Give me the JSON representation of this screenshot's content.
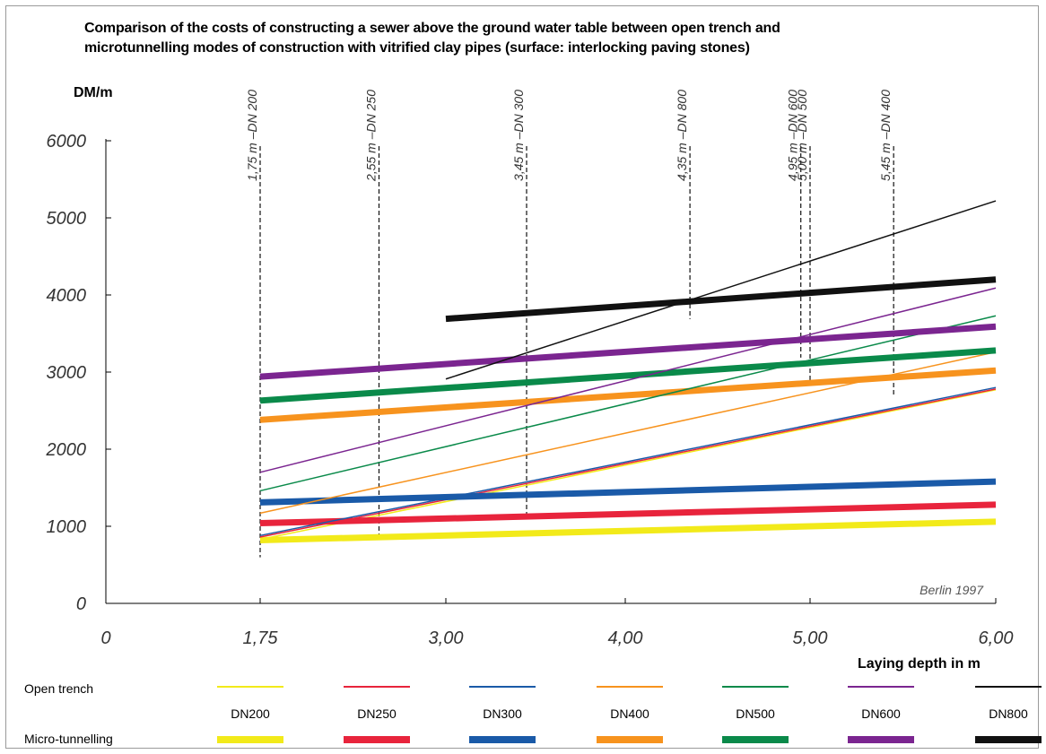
{
  "chart_data": {
    "type": "line",
    "title_lines": [
      "Comparison of the costs of constructing a sewer above  the ground water table  between open trench and",
      "microtunnelling modes of construction with vitrified clay pipes (surface: interlocking paving stones)"
    ],
    "ylabel": "DM/m",
    "xlabel": "Laying depth in m",
    "x_ticks": [
      {
        "value": 0,
        "label": "0"
      },
      {
        "value": 1.75,
        "label": "1,75"
      },
      {
        "value": 3.0,
        "label": "3,00"
      },
      {
        "value": 4.0,
        "label": "4,00"
      },
      {
        "value": 5.0,
        "label": "5,00"
      },
      {
        "value": 6.0,
        "label": "6,00"
      }
    ],
    "y_ticks": [
      {
        "value": 0,
        "label": "0"
      },
      {
        "value": 1000,
        "label": "1000"
      },
      {
        "value": 2000,
        "label": "2000"
      },
      {
        "value": 3000,
        "label": "3000"
      },
      {
        "value": 4000,
        "label": "4000"
      },
      {
        "value": 5000,
        "label": "5000"
      },
      {
        "value": 6000,
        "label": "6000"
      }
    ],
    "ylim": [
      0,
      6000
    ],
    "annotation": "Berlin 1997",
    "breakeven_markers": [
      {
        "x": 1.75,
        "label": "1,75 m –DN 200"
      },
      {
        "x": 2.55,
        "label": "2,55 m –DN 250"
      },
      {
        "x": 3.45,
        "label": "3,45 m –DN 300"
      },
      {
        "x": 4.35,
        "label": "4,35 m –DN 800"
      },
      {
        "x": 4.95,
        "label": "4,95 m –DN 600"
      },
      {
        "x": 5.0,
        "label": "5,00 m –DN 500"
      },
      {
        "x": 5.45,
        "label": "5,45 m –DN 400"
      }
    ],
    "series": [
      {
        "name": "DN200",
        "color": "#f2ea1a",
        "open_trench": [
          [
            1.75,
            830
          ],
          [
            6.0,
            2770
          ]
        ],
        "micro_tunnelling": [
          [
            1.75,
            820
          ],
          [
            6.0,
            1060
          ]
        ]
      },
      {
        "name": "DN250",
        "color": "#e8243c",
        "open_trench": [
          [
            1.75,
            860
          ],
          [
            6.0,
            2780
          ]
        ],
        "micro_tunnelling": [
          [
            1.75,
            1040
          ],
          [
            6.0,
            1280
          ]
        ]
      },
      {
        "name": "DN300",
        "color": "#1a5aa8",
        "open_trench": [
          [
            1.75,
            880
          ],
          [
            6.0,
            2800
          ]
        ],
        "micro_tunnelling": [
          [
            1.75,
            1310
          ],
          [
            6.0,
            1580
          ]
        ]
      },
      {
        "name": "DN400",
        "color": "#f7931e",
        "open_trench": [
          [
            1.75,
            1170
          ],
          [
            6.0,
            3260
          ]
        ],
        "micro_tunnelling": [
          [
            1.75,
            2380
          ],
          [
            6.0,
            3020
          ]
        ]
      },
      {
        "name": "DN500",
        "color": "#0a8a4a",
        "open_trench": [
          [
            1.75,
            1460
          ],
          [
            6.0,
            3730
          ]
        ],
        "micro_tunnelling": [
          [
            1.75,
            2630
          ],
          [
            6.0,
            3280
          ]
        ]
      },
      {
        "name": "DN600",
        "color": "#7b2590",
        "open_trench": [
          [
            1.75,
            1700
          ],
          [
            6.0,
            4090
          ]
        ],
        "micro_tunnelling": [
          [
            1.75,
            2940
          ],
          [
            6.0,
            3590
          ]
        ]
      },
      {
        "name": "DN800",
        "color": "#111111",
        "open_trench": [
          [
            3.0,
            2910
          ],
          [
            6.0,
            5220
          ]
        ],
        "micro_tunnelling": [
          [
            3.0,
            3690
          ],
          [
            6.0,
            4200
          ]
        ]
      }
    ],
    "legend": {
      "open_trench_label": "Open trench",
      "micro_tunnelling_label": "Micro-tunnelling"
    },
    "grid": false
  }
}
